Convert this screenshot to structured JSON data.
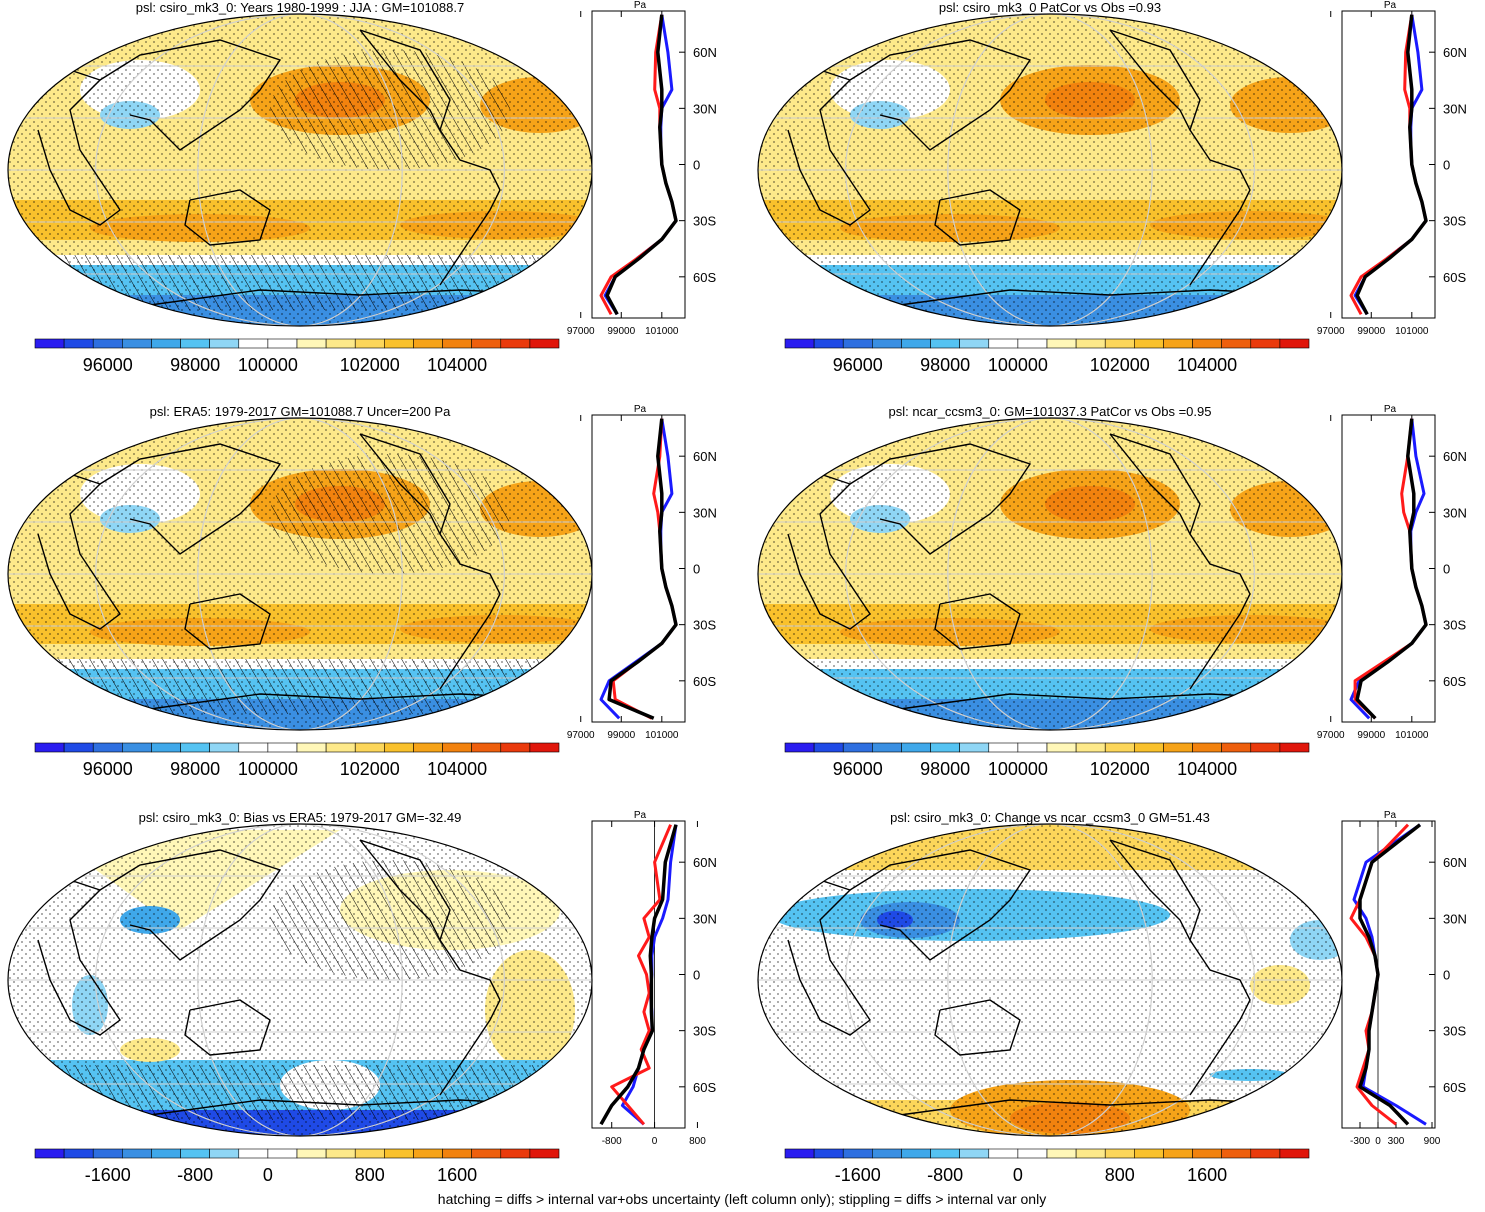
{
  "colors": {
    "palette": [
      "#2a1cf0",
      "#1f4ae6",
      "#2e6fe0",
      "#3a8fe2",
      "#3fa8ea",
      "#55c3f2",
      "#8fd6f5",
      "#ffffff",
      "#ffffff",
      "#fff7b8",
      "#fde98a",
      "#fcd65a",
      "#f9c12c",
      "#f6a318",
      "#f2820e",
      "#ee5f0d",
      "#ea3a0c",
      "#e0160b"
    ],
    "obs": "#ff1a1a",
    "model": "#1a1aff",
    "mmm": "#000000"
  },
  "footer": "hatching = diffs > internal var+obs uncertainty (left column only); stippling = diffs > internal var only",
  "chart_data": [
    {
      "type": "heatmap",
      "title": "psl: csiro_mk3_0: Years 1980-1999 : JJA : GM=101088.7",
      "mode": "abs",
      "colorbar_ticks": [
        "96000",
        "98000",
        "100000",
        "102000",
        "104000"
      ],
      "zonal": {
        "xticks": [
          "97000",
          "99000",
          "101000"
        ],
        "xunit": "Pa",
        "yticks": [
          "60N",
          "30N",
          "0",
          "30S",
          "60S"
        ],
        "lat": [
          80,
          60,
          40,
          30,
          20,
          10,
          0,
          -10,
          -20,
          -30,
          -40,
          -50,
          -60,
          -70,
          -80
        ],
        "series": [
          {
            "name": "obs",
            "values": [
              101000,
              100700,
              100650,
              100900,
              100900,
              100950,
              101000,
              101200,
              101500,
              101700,
              101000,
              99800,
              98500,
              98000,
              98500
            ]
          },
          {
            "name": "model",
            "values": [
              101000,
              101300,
              101500,
              101000,
              100950,
              100950,
              101000,
              101200,
              101500,
              101700,
              101000,
              99800,
              98700,
              98200,
              98800
            ]
          },
          {
            "name": "mmm",
            "values": [
              101000,
              100800,
              101000,
              101000,
              100900,
              100950,
              101000,
              101200,
              101500,
              101700,
              101000,
              99900,
              98700,
              98300,
              98800
            ]
          }
        ]
      }
    },
    {
      "type": "heatmap",
      "title": "psl: csiro_mk3_0 PatCor vs Obs =0.93",
      "mode": "abs",
      "colorbar_ticks": [
        "96000",
        "98000",
        "100000",
        "102000",
        "104000"
      ],
      "zonal": {
        "xticks": [
          "97000",
          "99000",
          "101000"
        ],
        "xunit": "Pa",
        "yticks": [
          "60N",
          "30N",
          "0",
          "30S",
          "60S"
        ],
        "lat": [
          80,
          60,
          40,
          30,
          20,
          10,
          0,
          -10,
          -20,
          -30,
          -40,
          -50,
          -60,
          -70,
          -80
        ],
        "series": [
          {
            "name": "obs",
            "values": [
              101000,
              100700,
              100650,
              100900,
              100900,
              100950,
              101000,
              101200,
              101500,
              101700,
              101000,
              99800,
              98500,
              98000,
              98500
            ]
          },
          {
            "name": "model",
            "values": [
              101000,
              101300,
              101500,
              101000,
              100950,
              100950,
              101000,
              101200,
              101500,
              101700,
              101000,
              99800,
              98700,
              98200,
              98800
            ]
          },
          {
            "name": "mmm",
            "values": [
              101000,
              100800,
              101000,
              101000,
              100900,
              100950,
              101000,
              101200,
              101500,
              101700,
              101000,
              99900,
              98700,
              98300,
              98800
            ]
          }
        ]
      }
    },
    {
      "type": "heatmap",
      "title": "psl: ERA5: 1979-2017 GM=101088.7 Uncer=200 Pa",
      "mode": "abs",
      "colorbar_ticks": [
        "96000",
        "98000",
        "100000",
        "102000",
        "104000"
      ],
      "zonal": {
        "xticks": [
          "97000",
          "99000",
          "101000"
        ],
        "xunit": "Pa",
        "yticks": [
          "60N",
          "30N",
          "0",
          "30S",
          "60S"
        ],
        "lat": [
          80,
          60,
          40,
          30,
          20,
          10,
          0,
          -10,
          -20,
          -30,
          -40,
          -50,
          -60,
          -70,
          -80
        ],
        "series": [
          {
            "name": "obs",
            "values": [
              101000,
              100900,
              100600,
              100800,
              100900,
              100950,
              101000,
              101200,
              101500,
              101700,
              101000,
              99800,
              98600,
              98700,
              100500
            ]
          },
          {
            "name": "model",
            "values": [
              101000,
              101300,
              101500,
              101000,
              100950,
              100950,
              101000,
              101200,
              101500,
              101700,
              101000,
              99700,
              98400,
              98000,
              98900
            ]
          },
          {
            "name": "mmm",
            "values": [
              101000,
              100800,
              101000,
              101000,
              100900,
              100950,
              101000,
              101200,
              101500,
              101700,
              101000,
              99800,
              98500,
              98400,
              100600
            ]
          }
        ]
      }
    },
    {
      "type": "heatmap",
      "title": "psl: ncar_ccsm3_0: GM=101037.3 PatCor vs Obs =0.95",
      "mode": "abs",
      "colorbar_ticks": [
        "96000",
        "98000",
        "100000",
        "102000",
        "104000"
      ],
      "zonal": {
        "xticks": [
          "97000",
          "99000",
          "101000"
        ],
        "xunit": "Pa",
        "yticks": [
          "60N",
          "30N",
          "0",
          "30S",
          "60S"
        ],
        "lat": [
          80,
          60,
          40,
          30,
          20,
          10,
          0,
          -10,
          -20,
          -30,
          -40,
          -50,
          -60,
          -70,
          -80
        ],
        "series": [
          {
            "name": "obs",
            "values": [
              101000,
              100800,
              100500,
              100600,
              100900,
              100950,
              101000,
              101200,
              101500,
              101700,
              101000,
              99600,
              98200,
              98200,
              99200
            ]
          },
          {
            "name": "model",
            "values": [
              101000,
              101200,
              101600,
              101200,
              100950,
              100950,
              101000,
              101200,
              101500,
              101700,
              101000,
              99700,
              98400,
              98000,
              98900
            ]
          },
          {
            "name": "mmm",
            "values": [
              101000,
              100800,
              101100,
              101100,
              100900,
              100950,
              101000,
              101200,
              101500,
              101700,
              101000,
              99800,
              98500,
              98300,
              99200
            ]
          }
        ]
      }
    },
    {
      "type": "heatmap",
      "title": "psl: csiro_mk3_0: Bias vs ERA5: 1979-2017 GM=-32.49",
      "mode": "diff",
      "colorbar_ticks": [
        "-1600",
        "-800",
        "0",
        "800",
        "1600"
      ],
      "zonal": {
        "xticks": [
          "-800",
          "0",
          "800"
        ],
        "xunit": "Pa",
        "yticks": [
          "60N",
          "30N",
          "0",
          "30S",
          "60S"
        ],
        "lat": [
          80,
          60,
          40,
          30,
          20,
          10,
          0,
          -10,
          -20,
          -30,
          -40,
          -50,
          -60,
          -70,
          -80
        ],
        "series": [
          {
            "name": "obs",
            "values": [
              300,
              0,
              100,
              -200,
              -100,
              -300,
              -150,
              -100,
              -200,
              -100,
              -250,
              -100,
              -800,
              -500,
              -200
            ]
          },
          {
            "name": "model",
            "values": [
              400,
              300,
              250,
              150,
              0,
              -50,
              -50,
              -80,
              -50,
              -50,
              -200,
              -300,
              -400,
              -600,
              -200
            ]
          },
          {
            "name": "mmm",
            "values": [
              400,
              200,
              150,
              0,
              -50,
              -80,
              -60,
              -60,
              -60,
              -40,
              -200,
              -300,
              -500,
              -800,
              -1000
            ]
          }
        ]
      }
    },
    {
      "type": "heatmap",
      "title": "psl: csiro_mk3_0: Change vs ncar_ccsm3_0 GM=51.43",
      "mode": "diff",
      "colorbar_ticks": [
        "-1600",
        "-800",
        "0",
        "800",
        "1600"
      ],
      "zonal": {
        "xticks": [
          "-300",
          "0",
          "300",
          "900"
        ],
        "xunit": "Pa",
        "yticks": [
          "60N",
          "30N",
          "0",
          "30S",
          "60S"
        ],
        "lat": [
          80,
          60,
          40,
          30,
          20,
          10,
          0,
          -10,
          -20,
          -30,
          -40,
          -50,
          -60,
          -70,
          -80
        ],
        "series": [
          {
            "name": "obs",
            "values": [
              500,
              -100,
              -300,
              -450,
              -200,
              -50,
              0,
              -50,
              -100,
              -200,
              -150,
              -250,
              -350,
              -100,
              300
            ]
          },
          {
            "name": "model",
            "values": [
              700,
              -200,
              -400,
              -200,
              -100,
              -50,
              0,
              -50,
              -100,
              -150,
              -150,
              -200,
              -250,
              300,
              800
            ]
          },
          {
            "name": "mmm",
            "values": [
              700,
              -100,
              -300,
              -300,
              -150,
              -50,
              0,
              -50,
              -100,
              -150,
              -150,
              -200,
              -300,
              200,
              500
            ]
          }
        ]
      }
    }
  ]
}
